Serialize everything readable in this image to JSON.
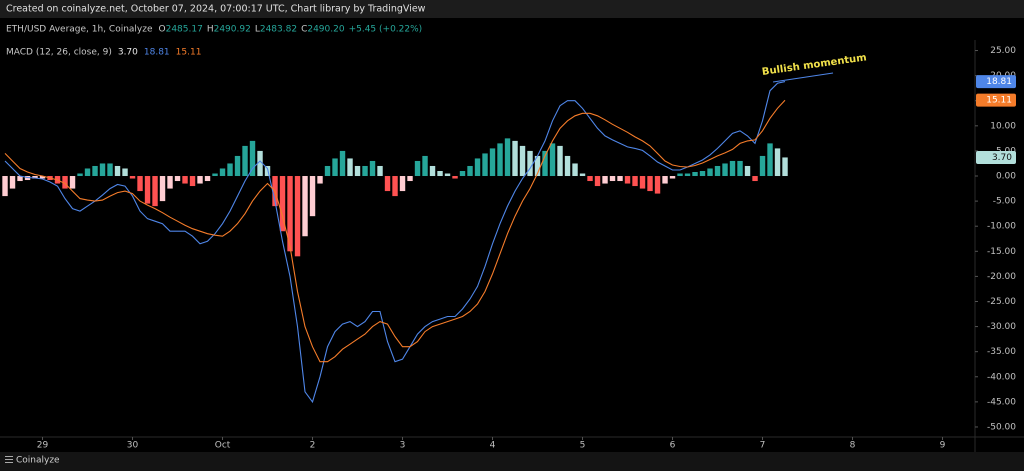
{
  "credit": "Created on coinalyze.net, October 07, 2024, 07:00:17 UTC, Chart library by TradingView",
  "brand": "Coinalyze",
  "chart_data": {
    "type": "macd",
    "symbol": "ETH/USD Average, 1h, Coinalyze",
    "ohlc": [
      {
        "label": "O",
        "value": "2485.17"
      },
      {
        "label": "H",
        "value": "2490.92"
      },
      {
        "label": "L",
        "value": "2483.82"
      },
      {
        "label": "C",
        "value": "2490.20"
      }
    ],
    "change": "+5.45 (+0.22%)",
    "indicator": "MACD (12, 26, close, 9)",
    "annotation": "Bullish momentum",
    "ylim": [
      -51.8,
      27.1
    ],
    "yticks": [
      {
        "value": 25,
        "label": "25.00"
      },
      {
        "value": 20,
        "label": "20.00"
      },
      {
        "value": 15,
        "label": "15.00"
      },
      {
        "value": 10,
        "label": "10.00"
      },
      {
        "value": 5,
        "label": "5.00"
      },
      {
        "value": 0,
        "label": "0.00"
      },
      {
        "value": -5,
        "label": "-5.00"
      },
      {
        "value": -10,
        "label": "-10.00"
      },
      {
        "value": -15,
        "label": "-15.00"
      },
      {
        "value": -20,
        "label": "-20.00"
      },
      {
        "value": -25,
        "label": "-25.00"
      },
      {
        "value": -30,
        "label": "-30.00"
      },
      {
        "value": -35,
        "label": "-35.00"
      },
      {
        "value": -40,
        "label": "-40.00"
      },
      {
        "value": -45,
        "label": "-45.00"
      },
      {
        "value": -50,
        "label": "-50.00"
      }
    ],
    "xlim": [
      -0.67,
      129.33
    ],
    "xticks": [
      {
        "value": 5,
        "label": "29"
      },
      {
        "value": 17,
        "label": "30"
      },
      {
        "value": 29,
        "label": "Oct"
      },
      {
        "value": 41,
        "label": "2"
      },
      {
        "value": 53,
        "label": "3"
      },
      {
        "value": 65,
        "label": "4"
      },
      {
        "value": 77,
        "label": "5"
      },
      {
        "value": 89,
        "label": "6"
      },
      {
        "value": 101,
        "label": "7"
      },
      {
        "value": 113,
        "label": "8"
      },
      {
        "value": 125,
        "label": "9"
      }
    ],
    "series": [
      {
        "type": "bar",
        "colors": [
          "#26a69a",
          "#b2dfdb",
          "#ffcdd2",
          "#ff5252"
        ],
        "last_label": "3.70",
        "values": [
          -4,
          -2.5,
          -1,
          -0.8,
          -0.5,
          -0.5,
          -0.8,
          -1.5,
          -2.5,
          -2.5,
          0.5,
          1.5,
          2,
          2.5,
          2.5,
          2,
          1.5,
          -0.5,
          -3,
          -5.5,
          -6,
          -5,
          -2.5,
          -1,
          -1.5,
          -2,
          -1.5,
          -1,
          0.5,
          1.5,
          2.5,
          4,
          6,
          7,
          5,
          2,
          -6,
          -11,
          -15,
          -16,
          -12,
          -8,
          -1.5,
          2,
          3.5,
          5,
          3.5,
          2,
          2,
          3,
          2,
          -3,
          -4,
          -3,
          -1,
          3,
          4,
          2,
          1,
          0.5,
          -0.5,
          1,
          2,
          3.5,
          4.5,
          5.5,
          6.5,
          7.5,
          7,
          6,
          5,
          4,
          5,
          6.5,
          6,
          4,
          2.5,
          0.5,
          -1,
          -2,
          -1.5,
          -1,
          -1,
          -1.5,
          -2,
          -2.5,
          -3,
          -3.5,
          -1.5,
          -0.5,
          0.5,
          0.5,
          0.8,
          1,
          1.5,
          2,
          2.5,
          3,
          3,
          2,
          -1,
          4,
          6.5,
          5.5,
          3.7
        ]
      },
      {
        "type": "line",
        "color": "#4f86e8",
        "last_label": "18.81",
        "values": [
          3,
          1.5,
          0,
          -0.3,
          -0.4,
          -0.6,
          -1.2,
          -2,
          -4.5,
          -6.5,
          -7,
          -6,
          -5,
          -3.8,
          -2.5,
          -1.7,
          -2,
          -4,
          -7,
          -8.5,
          -9,
          -9.5,
          -11,
          -11,
          -11,
          -12,
          -13.5,
          -13,
          -11.5,
          -9.5,
          -7,
          -4,
          -1,
          1.5,
          3,
          1.5,
          -5,
          -13,
          -20,
          -30,
          -43,
          -45,
          -40,
          -34,
          -31,
          -29.5,
          -29,
          -30,
          -29,
          -27,
          -27,
          -33,
          -37,
          -36.5,
          -34,
          -31.5,
          -30,
          -29,
          -28.5,
          -28,
          -28,
          -26.5,
          -24.5,
          -22,
          -18,
          -13.5,
          -9.5,
          -6,
          -3,
          -0.5,
          1.5,
          4,
          7,
          11,
          14,
          15,
          15,
          13.5,
          11.5,
          9.5,
          8,
          7.2,
          6.5,
          5.8,
          5.5,
          5.1,
          4,
          2.8,
          2,
          1.2,
          1.2,
          1.8,
          2.5,
          3.2,
          4.2,
          5.5,
          7,
          8.5,
          9,
          8,
          6.5,
          11,
          17,
          18.5,
          18.81
        ]
      },
      {
        "type": "line",
        "color": "#f57c2a",
        "last_label": "15.11",
        "values": [
          4.5,
          3,
          1.5,
          0.8,
          0.3,
          0,
          -0.4,
          -0.8,
          -1.5,
          -3,
          -4.5,
          -4.8,
          -5,
          -4.8,
          -4,
          -3.3,
          -3,
          -3.5,
          -5,
          -5.8,
          -6.5,
          -7.3,
          -8.2,
          -9,
          -9.8,
          -10.5,
          -11,
          -11.5,
          -11.8,
          -12,
          -11,
          -9.5,
          -7.5,
          -5,
          -3,
          -1.5,
          -3,
          -8,
          -14,
          -23,
          -30,
          -34,
          -37,
          -37,
          -36,
          -34.5,
          -33.5,
          -32.5,
          -31.5,
          -30,
          -29,
          -29.5,
          -32,
          -34,
          -34,
          -33,
          -31,
          -30,
          -29.5,
          -29,
          -28.5,
          -28,
          -27,
          -25.5,
          -23,
          -19.5,
          -15.5,
          -11.5,
          -8,
          -5,
          -2.5,
          0.5,
          4,
          7,
          9.5,
          11,
          12,
          12.5,
          12.5,
          12,
          11.2,
          10.3,
          9.5,
          8.7,
          7.8,
          7,
          6,
          4.5,
          3,
          2.2,
          1.9,
          1.8,
          2.1,
          2.6,
          3.3,
          4,
          4.6,
          5.3,
          6.5,
          7,
          7.2,
          9,
          11.5,
          13.5,
          15.11
        ]
      }
    ]
  }
}
